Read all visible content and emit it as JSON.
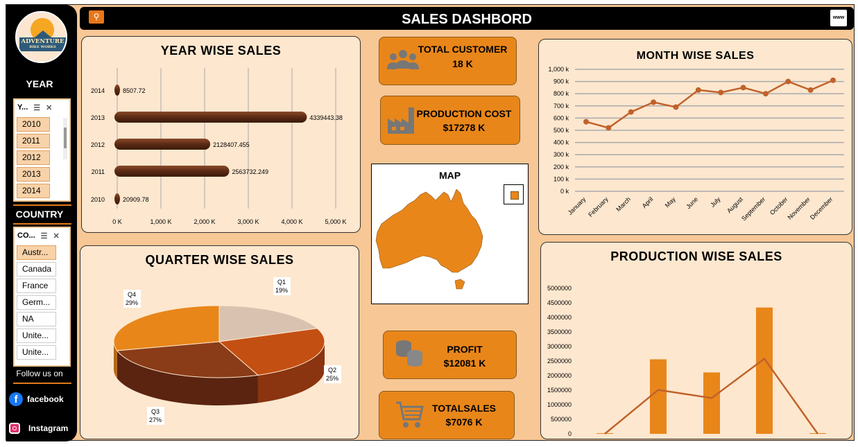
{
  "header": {
    "title": "SALES DASHBORD"
  },
  "logo": {
    "line1": "ADVENTURE",
    "line2": "BIKE WORKS"
  },
  "sidebar": {
    "year_heading": "YEAR",
    "year_slicer": {
      "title": "Y...",
      "items": [
        "2010",
        "2011",
        "2012",
        "2013",
        "2014"
      ]
    },
    "country_heading": "COUNTRY",
    "country_slicer": {
      "title": "CO...",
      "items": [
        "Austr...",
        "Canada",
        "France",
        "Germ...",
        "NA",
        "Unite...",
        "Unite..."
      ]
    },
    "follow": "Follow us on",
    "facebook": "facebook",
    "instagram": "Instagram"
  },
  "kpis": {
    "total_customer": {
      "label": "TOTAL CUSTOMER",
      "value": "18 K"
    },
    "production_cost": {
      "label": "PRODUCTION COST",
      "value": "$17278 K"
    },
    "profit": {
      "label": "PROFIT",
      "value": "$12081 K"
    },
    "total_sales": {
      "label": "TOTALSALES",
      "value": "$7076 K"
    }
  },
  "map": {
    "title": "MAP"
  },
  "colors": {
    "accent": "#e8861a",
    "bar_dark": "#5a2a14",
    "panel": "#fde7cf",
    "background": "#f7c795"
  },
  "chart_data": [
    {
      "type": "bar",
      "title": "YEAR WISE SALES",
      "orientation": "horizontal",
      "categories": [
        "2014",
        "2013",
        "2012",
        "2011",
        "2010"
      ],
      "values": [
        8507.72,
        4339443.38,
        2128407.455,
        2563732.249,
        20909.78
      ],
      "value_labels": [
        "8507.72",
        "4339443.38",
        "2128407.455",
        "2563732.249",
        "20909.78"
      ],
      "xlim": [
        0,
        5000000
      ],
      "xticks": [
        "0 K",
        "1,000 K",
        "2,000 K",
        "3,000 K",
        "4,000 K",
        "5,000 K"
      ]
    },
    {
      "type": "line",
      "title": "MONTH WISE SALES",
      "categories": [
        "January",
        "February",
        "March",
        "April",
        "May",
        "June",
        "July",
        "August",
        "September",
        "October",
        "November",
        "December"
      ],
      "values": [
        570000,
        520000,
        650000,
        730000,
        690000,
        830000,
        810000,
        850000,
        800000,
        900000,
        830000,
        910000
      ],
      "ylim": [
        0,
        1000000
      ],
      "yticks": [
        "0 k",
        "100 k",
        "200 k",
        "300 k",
        "400 k",
        "500 k",
        "600 k",
        "700 k",
        "800 k",
        "900 k",
        "1,000 k"
      ]
    },
    {
      "type": "pie",
      "title": "QUARTER WISE SALES",
      "slices": [
        {
          "label": "Q1",
          "pct": "19%",
          "value": 19
        },
        {
          "label": "Q2",
          "pct": "25%",
          "value": 25
        },
        {
          "label": "Q3",
          "pct": "27%",
          "value": 27
        },
        {
          "label": "Q4",
          "pct": "29%",
          "value": 29
        }
      ]
    },
    {
      "type": "bar",
      "title": "PRODUCTION WISE SALES",
      "bar_values": [
        0,
        2560000,
        2110000,
        4340000,
        0
      ],
      "line_values": [
        0,
        1510000,
        1230000,
        2580000,
        0
      ],
      "ylim": [
        0,
        5000000
      ],
      "yticks": [
        "0",
        "500000",
        "1000000",
        "1500000",
        "2000000",
        "2500000",
        "3000000",
        "3500000",
        "4000000",
        "4500000",
        "5000000"
      ]
    }
  ]
}
